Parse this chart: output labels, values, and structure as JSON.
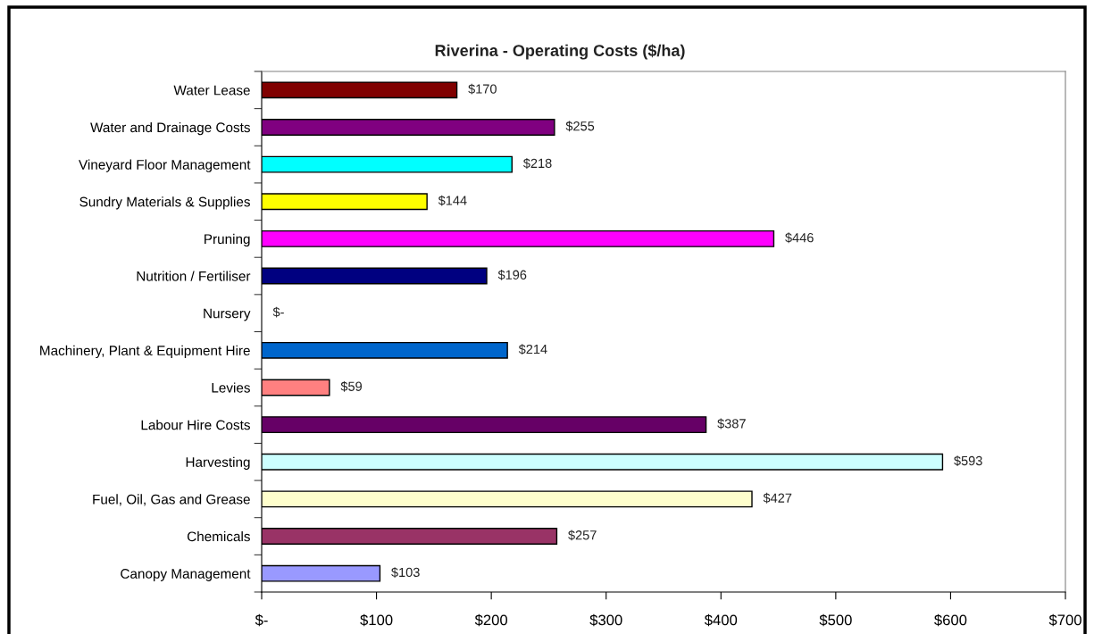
{
  "chart_data": {
    "type": "bar",
    "orientation": "horizontal",
    "title": "Riverina - Operating Costs ($/ha)",
    "categories": [
      "Water Lease",
      "Water and Drainage Costs",
      "Vineyard Floor Management",
      "Sundry Materials & Supplies",
      "Pruning",
      "Nutrition / Fertiliser",
      "Nursery",
      "Machinery, Plant & Equipment Hire",
      "Levies",
      "Labour Hire Costs",
      "Harvesting",
      "Fuel, Oil, Gas and Grease",
      "Chemicals",
      "Canopy Management"
    ],
    "values": [
      170,
      255,
      218,
      144,
      446,
      196,
      0,
      214,
      59,
      387,
      593,
      427,
      257,
      103
    ],
    "colors": [
      "#800000",
      "#800080",
      "#00ffff",
      "#ffff00",
      "#ff00ff",
      "#000080",
      null,
      "#0066cc",
      "#ff8080",
      "#660066",
      "#ccffff",
      "#ffffcc",
      "#993366",
      "#9999ff"
    ],
    "value_labels": [
      "$170",
      "$255",
      "$218",
      "$144",
      "$446",
      "$196",
      "$-",
      "$214",
      "$59",
      "$387",
      "$593",
      "$427",
      "$257",
      "$103"
    ],
    "xlim": [
      0,
      700
    ],
    "xticks": [
      {
        "value": 0,
        "label": "$-"
      },
      {
        "value": 100,
        "label": "$100"
      },
      {
        "value": 200,
        "label": "$200"
      },
      {
        "value": 300,
        "label": "$300"
      },
      {
        "value": 400,
        "label": "$400"
      },
      {
        "value": 500,
        "label": "$500"
      },
      {
        "value": 600,
        "label": "$600"
      },
      {
        "value": 700,
        "label": "$700"
      }
    ]
  }
}
